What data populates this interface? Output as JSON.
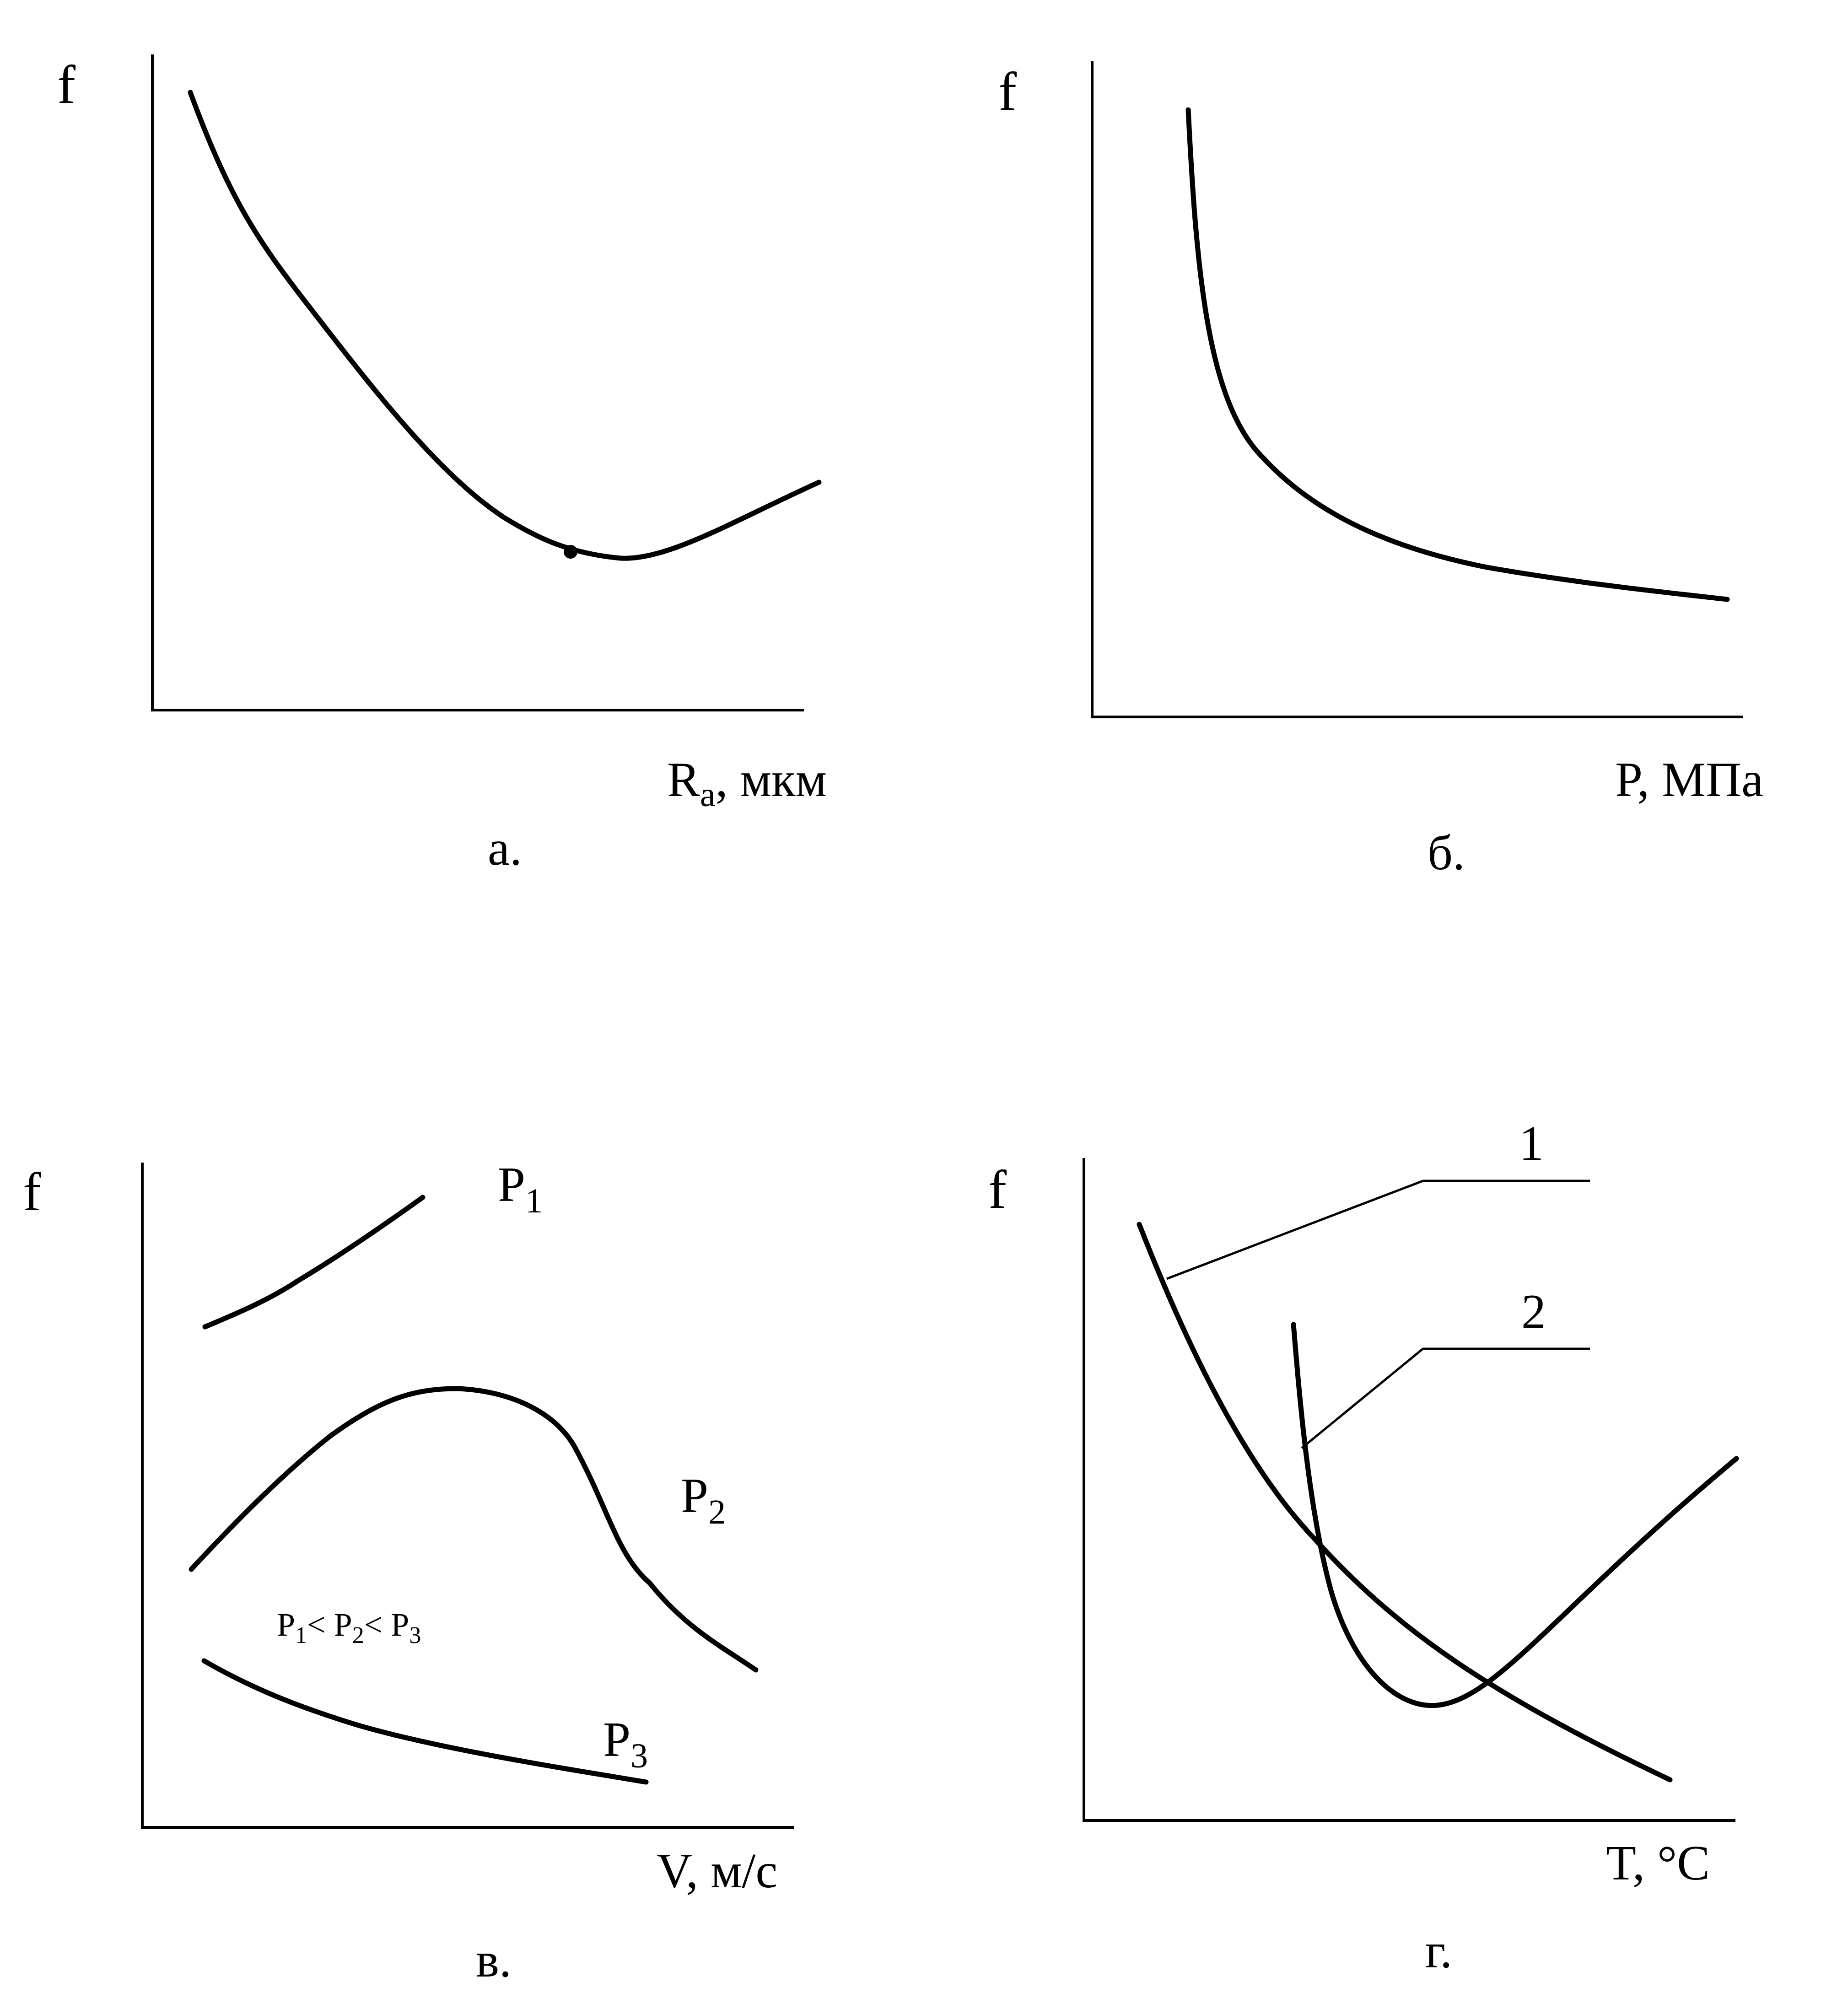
{
  "chart_data": [
    {
      "panel": "а.",
      "type": "line",
      "ylabel": "f",
      "xlabel_main": "R",
      "xlabel_sub": "a",
      "xlabel_rest": ", мкм",
      "series": [
        {
          "shape": "decreasing to a minimum, then rising",
          "x": [
            0.06,
            0.18,
            0.35,
            0.52,
            0.63,
            0.73,
            0.85,
            1.0
          ],
          "y": [
            0.94,
            0.73,
            0.51,
            0.33,
            0.24,
            0.23,
            0.27,
            0.35
          ]
        }
      ]
    },
    {
      "panel": "б.",
      "type": "line",
      "ylabel": "f",
      "xlabel": "P, МПа",
      "series": [
        {
          "shape": "hyperbolic decrease",
          "x": [
            0.15,
            0.17,
            0.21,
            0.3,
            0.45,
            0.65,
            0.85,
            0.98
          ],
          "y": [
            0.9,
            0.58,
            0.41,
            0.29,
            0.21,
            0.17,
            0.15,
            0.17
          ]
        }
      ]
    },
    {
      "panel": "в.",
      "type": "line",
      "ylabel": "f",
      "xlabel": "V, м/с",
      "annotation": {
        "p1": "P",
        "s1": "1",
        "lt1": "< P",
        "s2": "2",
        "lt2": "< P",
        "s3": "3"
      },
      "series": [
        {
          "label_main": "P",
          "label_sub": "1",
          "x": [
            0.1,
            0.2,
            0.3,
            0.43
          ],
          "y": [
            0.76,
            0.81,
            0.88,
            0.96
          ]
        },
        {
          "label_main": "P",
          "label_sub": "2",
          "x": [
            0.07,
            0.2,
            0.35,
            0.48,
            0.57,
            0.68,
            0.8,
            0.95
          ],
          "y": [
            0.39,
            0.55,
            0.66,
            0.66,
            0.55,
            0.39,
            0.29,
            0.24
          ]
        },
        {
          "label_main": "P",
          "label_sub": "3",
          "x": [
            0.09,
            0.25,
            0.45,
            0.65,
            0.78
          ],
          "y": [
            0.25,
            0.16,
            0.11,
            0.07,
            0.05
          ]
        }
      ]
    },
    {
      "panel": "г.",
      "type": "line",
      "ylabel": "f",
      "xlabel": "T, °C",
      "series": [
        {
          "label": "1",
          "x": [
            0.09,
            0.2,
            0.36,
            0.55,
            0.7,
            0.9
          ],
          "y": [
            0.9,
            0.66,
            0.43,
            0.26,
            0.17,
            0.06
          ]
        },
        {
          "label": "2",
          "x": [
            0.33,
            0.35,
            0.42,
            0.53,
            0.62,
            0.78,
            1.0
          ],
          "y": [
            0.72,
            0.46,
            0.2,
            0.18,
            0.2,
            0.34,
            0.56
          ]
        }
      ]
    }
  ]
}
